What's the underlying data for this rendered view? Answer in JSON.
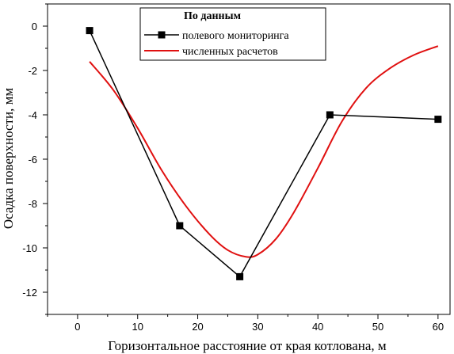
{
  "chart_data": {
    "type": "line",
    "xlabel": "Горизонтальное расстояние от края котлована, м",
    "ylabel": "Осадка поверхности, мм",
    "xlim": [
      -5,
      62
    ],
    "ylim": [
      -13,
      1
    ],
    "x_ticks": [
      0,
      10,
      20,
      30,
      40,
      50,
      60
    ],
    "y_ticks": [
      0,
      -2,
      -4,
      -6,
      -8,
      -10,
      -12
    ],
    "grid": false,
    "legend": {
      "title": "По данным",
      "placement": "top-center"
    },
    "series": [
      {
        "name": "полевого мониторинга",
        "color": "#000000",
        "marker": "square",
        "x": [
          2,
          17,
          27,
          42,
          60
        ],
        "y": [
          -0.2,
          -9.0,
          -11.3,
          -4.0,
          -4.2
        ]
      },
      {
        "name": "численных расчетов",
        "color": "#e01010",
        "marker": "none",
        "x": [
          2,
          6,
          10,
          14,
          18,
          22,
          25,
          28,
          30,
          33,
          36,
          40,
          44,
          48,
          52,
          56,
          60
        ],
        "y": [
          -1.6,
          -2.9,
          -4.6,
          -6.5,
          -8.1,
          -9.4,
          -10.1,
          -10.4,
          -10.3,
          -9.6,
          -8.4,
          -6.4,
          -4.3,
          -2.8,
          -1.9,
          -1.3,
          -0.9
        ]
      }
    ]
  }
}
